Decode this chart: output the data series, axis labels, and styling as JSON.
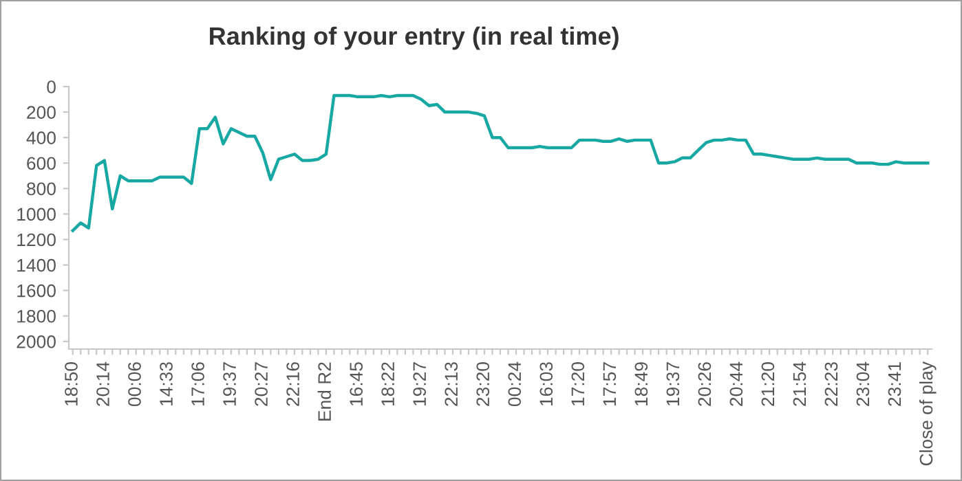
{
  "chart_data": {
    "type": "line",
    "title": "Ranking of your entry (in real time)",
    "categories": [
      "18:50",
      null,
      null,
      null,
      "20:14",
      null,
      null,
      null,
      "00:06",
      null,
      null,
      null,
      "14:33",
      null,
      null,
      null,
      "17:06",
      null,
      null,
      null,
      "19:37",
      null,
      null,
      null,
      "20:27",
      null,
      null,
      null,
      "22:16",
      null,
      null,
      null,
      "End R2",
      null,
      null,
      null,
      "16:45",
      null,
      null,
      null,
      "18:22",
      null,
      null,
      null,
      "19:27",
      null,
      null,
      null,
      "22:13",
      null,
      null,
      null,
      "23:20",
      null,
      null,
      null,
      "00:24",
      null,
      null,
      null,
      "16:03",
      null,
      null,
      null,
      "17:20",
      null,
      null,
      null,
      "17:57",
      null,
      null,
      null,
      "18:49",
      null,
      null,
      null,
      "19:37",
      null,
      null,
      null,
      "20:26",
      null,
      null,
      null,
      "20:44",
      null,
      null,
      null,
      "21:20",
      null,
      null,
      null,
      "21:54",
      null,
      null,
      null,
      "22:23",
      null,
      null,
      null,
      "23:04",
      null,
      null,
      null,
      "23:41",
      null,
      null,
      null,
      "Close of play"
    ],
    "series": [
      {
        "color": "#17a8a3",
        "values": [
          1130,
          1070,
          1110,
          620,
          580,
          960,
          700,
          740,
          740,
          740,
          740,
          710,
          710,
          710,
          710,
          760,
          330,
          330,
          240,
          450,
          330,
          360,
          390,
          390,
          520,
          730,
          570,
          550,
          530,
          580,
          580,
          570,
          530,
          70,
          70,
          70,
          80,
          80,
          80,
          70,
          80,
          70,
          70,
          70,
          100,
          150,
          140,
          200,
          200,
          200,
          200,
          210,
          230,
          400,
          400,
          480,
          480,
          480,
          480,
          470,
          480,
          480,
          480,
          480,
          420,
          420,
          420,
          430,
          430,
          410,
          430,
          420,
          420,
          420,
          600,
          600,
          590,
          560,
          560,
          500,
          440,
          420,
          420,
          410,
          420,
          420,
          530,
          530,
          540,
          550,
          560,
          570,
          570,
          570,
          560,
          570,
          570,
          570,
          570,
          600,
          600,
          600,
          610,
          610,
          590,
          600,
          600,
          600,
          600
        ]
      }
    ],
    "ylim": [
      2060,
      0
    ],
    "yticks": [
      0,
      200,
      400,
      600,
      800,
      1000,
      1200,
      1400,
      1600,
      1800,
      2000
    ],
    "grid": false,
    "legend": false,
    "marker": "none",
    "line_style": "solid"
  }
}
